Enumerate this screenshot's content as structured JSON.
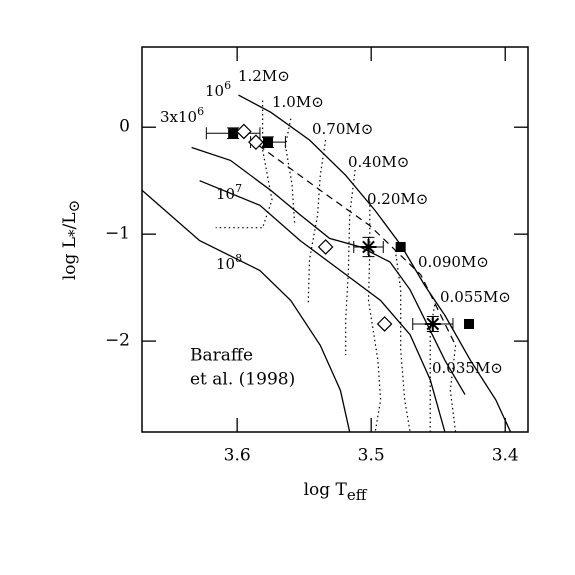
{
  "chart_data": {
    "type": "hr-diagram",
    "x_label": {
      "text": "log T",
      "sub": "eff"
    },
    "y_label": {
      "text": "log L",
      "sub": "*",
      "rest": "/L",
      "sub2": "⊙"
    },
    "xlim": [
      3.671,
      3.383
    ],
    "ylim": [
      -2.85,
      0.75
    ],
    "xticks": [
      3.6,
      3.5,
      3.4
    ],
    "yticks": [
      {
        "value": 0,
        "label": "0"
      },
      {
        "value": -1,
        "label": "−1"
      },
      {
        "value": -2,
        "label": "−2"
      }
    ],
    "annotation": [
      "Baraffe",
      "et al. (1998)"
    ],
    "isochrones": [
      {
        "base": "10",
        "exp": "6",
        "x": [
          3.599,
          3.575,
          3.546,
          3.519,
          3.497,
          3.478,
          3.46,
          3.445,
          3.426,
          3.407,
          3.396
        ],
        "y": [
          0.3,
          0.14,
          -0.12,
          -0.45,
          -0.78,
          -1.1,
          -1.48,
          -1.76,
          -2.18,
          -2.55,
          -2.85
        ]
      },
      {
        "base": "3x10",
        "exp": "6",
        "x": [
          3.634,
          3.605,
          3.575,
          3.553,
          3.531,
          3.508,
          3.486,
          3.471,
          3.456,
          3.445,
          3.43
        ],
        "y": [
          -0.19,
          -0.31,
          -0.59,
          -0.82,
          -1.04,
          -1.12,
          -1.26,
          -1.52,
          -1.9,
          -2.18,
          -2.5
        ]
      },
      {
        "base": "10",
        "exp": "7",
        "x": [
          3.628,
          3.583,
          3.553,
          3.523,
          3.493,
          3.471,
          3.456,
          3.445
        ],
        "y": [
          -0.5,
          -0.73,
          -1.06,
          -1.34,
          -1.62,
          -1.94,
          -2.36,
          -2.85
        ]
      },
      {
        "base": "10",
        "exp": "8",
        "x": [
          3.671,
          3.628,
          3.583,
          3.56,
          3.538,
          3.523,
          3.516
        ],
        "y": [
          -0.59,
          -1.06,
          -1.34,
          -1.62,
          -2.04,
          -2.46,
          -2.85
        ]
      }
    ],
    "tracks": [
      {
        "name": "1.2M⊙",
        "x": [
          3.581,
          3.581,
          3.574,
          3.581,
          3.616
        ],
        "y": [
          0.25,
          -0.21,
          -0.68,
          -0.94,
          -0.94
        ]
      },
      {
        "name": "1.0M⊙",
        "x": [
          3.56,
          3.564,
          3.559,
          3.557
        ],
        "y": [
          0.08,
          -0.17,
          -0.54,
          -0.92
        ]
      },
      {
        "name": "0.70M⊙",
        "x": [
          3.534,
          3.538,
          3.54,
          3.546,
          3.547
        ],
        "y": [
          -0.12,
          -0.45,
          -0.82,
          -1.24,
          -1.66
        ]
      },
      {
        "name": "0.40M⊙",
        "x": [
          3.512,
          3.516,
          3.517,
          3.519,
          3.519
        ],
        "y": [
          -0.4,
          -0.82,
          -1.34,
          -1.8,
          -2.13
        ]
      },
      {
        "name": "0.20M⊙",
        "x": [
          3.501,
          3.501,
          3.502,
          3.495,
          3.493,
          3.497
        ],
        "y": [
          -0.73,
          -1.15,
          -1.62,
          -2.18,
          -2.55,
          -2.85
        ]
      },
      {
        "name": "0.090M⊙",
        "x": [
          3.482,
          3.478,
          3.478,
          3.475,
          3.471
        ],
        "y": [
          -1.15,
          -1.52,
          -2.08,
          -2.55,
          -2.85
        ]
      },
      {
        "name": "0.055M⊙",
        "x": [
          3.452,
          3.456,
          3.456,
          3.456
        ],
        "y": [
          -1.62,
          -1.9,
          -2.36,
          -2.85
        ]
      },
      {
        "name": "0.035M⊙",
        "x": [
          3.437,
          3.441,
          3.437
        ],
        "y": [
          -2.04,
          -2.46,
          -2.85
        ]
      }
    ],
    "dashed_line": {
      "x": [
        3.584,
        3.538,
        3.501,
        3.463,
        3.437
      ],
      "y": [
        -0.17,
        -0.59,
        -0.92,
        -1.38,
        -2.04
      ]
    },
    "squares": {
      "x": [
        3.603,
        3.577,
        3.478,
        3.427
      ],
      "y": [
        -0.056,
        -0.14,
        -1.12,
        -1.84
      ]
    },
    "diamonds": {
      "x": [
        3.595,
        3.586,
        3.534,
        3.49
      ],
      "y": [
        -0.04,
        -0.14,
        -1.12,
        -1.84
      ]
    },
    "errorbars": {
      "x": [
        3.603,
        3.577,
        3.502,
        3.454
      ],
      "y": [
        -0.056,
        -0.14,
        -1.12,
        -1.84
      ],
      "xerr": [
        0.02,
        0.013,
        0.011,
        0.015
      ],
      "yerr": [
        0.05,
        0.05,
        0.09,
        0.07
      ]
    },
    "stars": {
      "x": [
        3.502,
        3.454
      ],
      "y": [
        -1.12,
        -1.84
      ]
    }
  }
}
